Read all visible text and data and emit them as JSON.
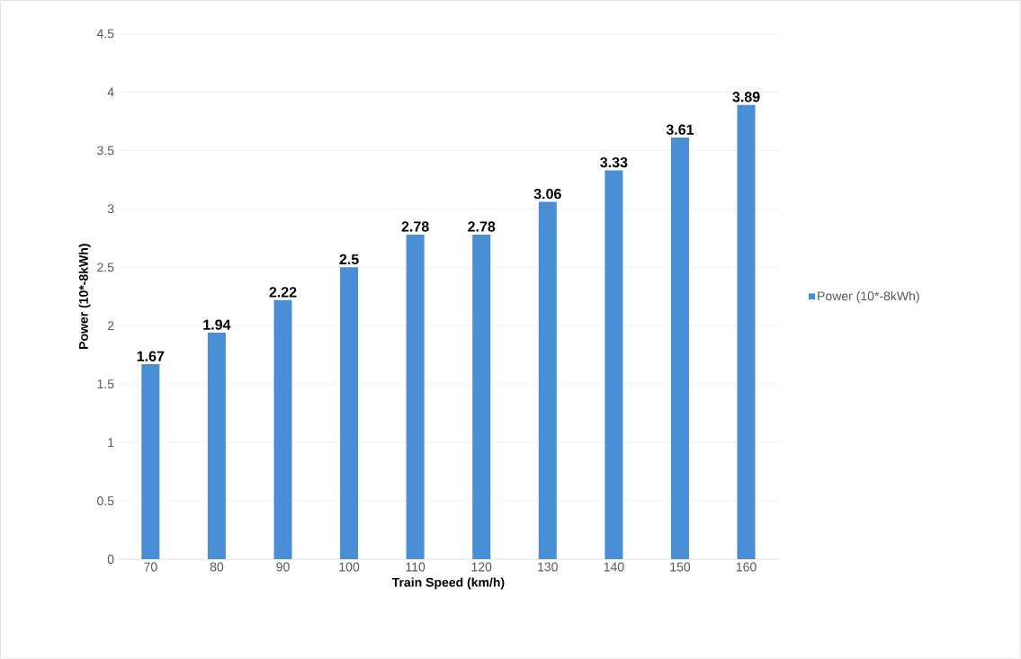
{
  "chart_data": {
    "type": "bar",
    "xlabel": "Train Speed (km/h)",
    "ylabel": "Power (10*-8kWh)",
    "categories": [
      "70",
      "80",
      "90",
      "100",
      "110",
      "120",
      "130",
      "140",
      "150",
      "160"
    ],
    "series": [
      {
        "name": "Power (10*-8kWh)",
        "color": "#4a8fd6",
        "values": [
          1.67,
          1.94,
          2.22,
          2.5,
          2.78,
          2.78,
          3.06,
          3.33,
          3.61,
          3.89
        ]
      }
    ],
    "ylim": [
      0,
      4.5
    ],
    "yticks": [
      0,
      0.5,
      1,
      1.5,
      2,
      2.5,
      3,
      3.5,
      4,
      4.5
    ],
    "grid": "y",
    "legend": "right",
    "data_labels": true
  }
}
